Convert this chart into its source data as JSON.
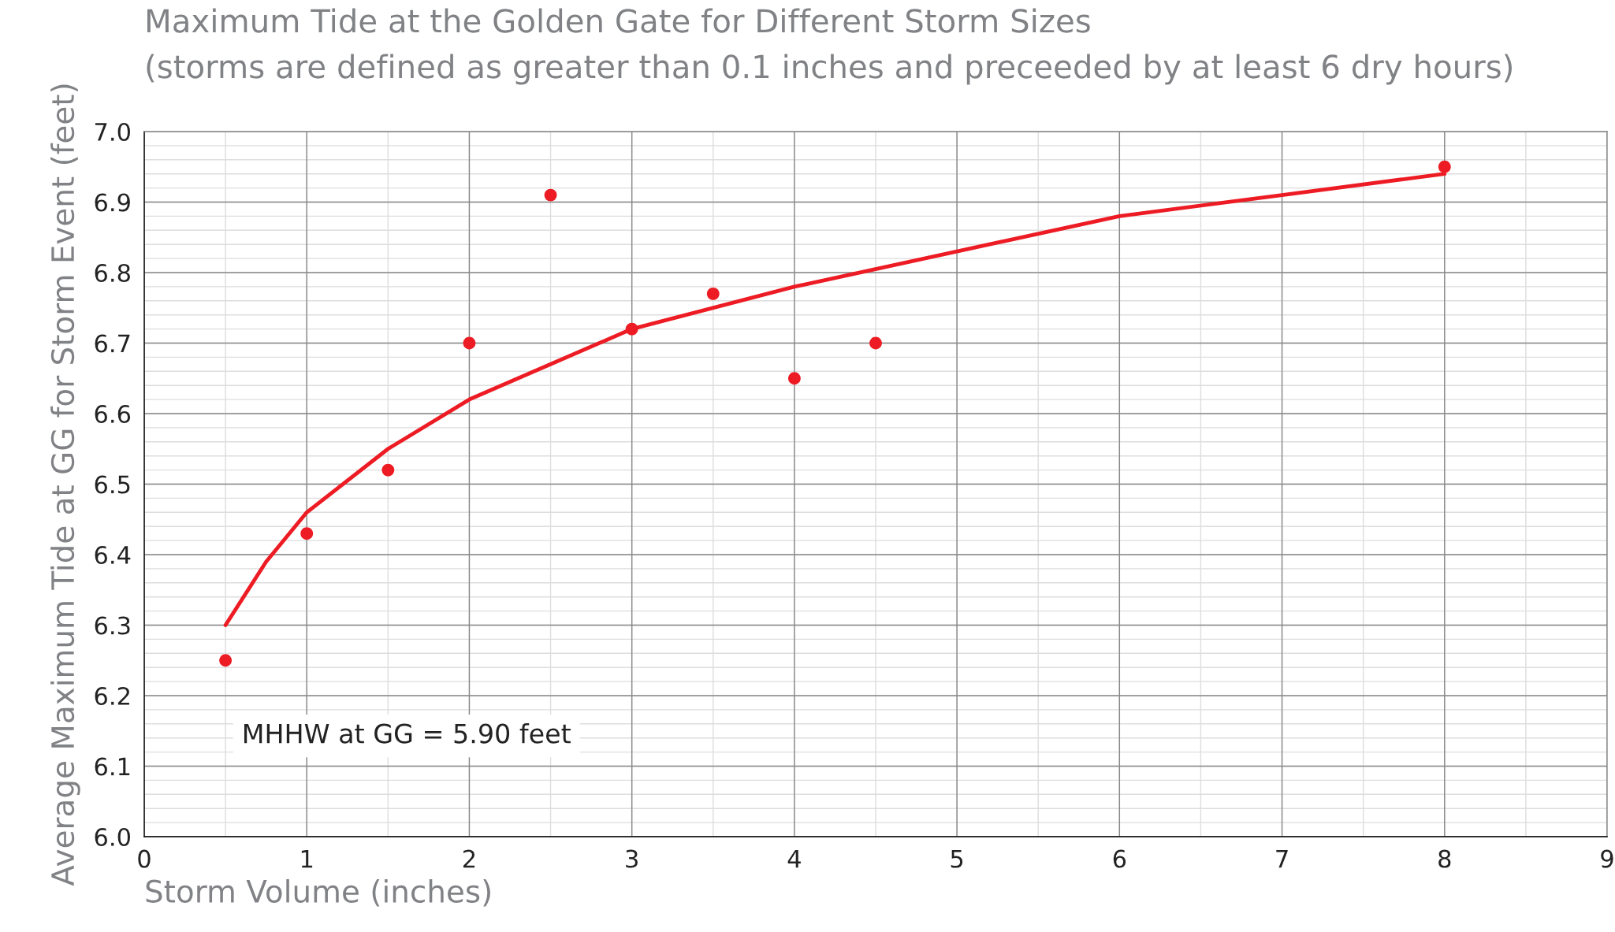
{
  "chart_data": {
    "type": "scatter",
    "title": "Maximum Tide at the Golden Gate for Different Storm Sizes",
    "subtitle": "(storms are defined as greater than 0.1 inches and preceeded by at least 6 dry hours)",
    "xlabel": "Storm Volume (inches)",
    "ylabel": "Average Maximum Tide at GG for Storm Event (feet)",
    "annotations": [
      "MHHW at GG = 5.90 feet"
    ],
    "series": [
      {
        "color": "#ed1c24",
        "marker": "circle",
        "x": [
          0.5,
          1,
          1.5,
          2,
          2.5,
          3,
          3.5,
          4,
          4.5,
          8
        ],
        "values": [
          6.25,
          6.43,
          6.52,
          6.7,
          6.91,
          6.72,
          6.77,
          6.65,
          6.7,
          6.95
        ]
      },
      {
        "type": "line",
        "color": "#ed1c24",
        "line_style": "solid",
        "x": [
          0.5,
          0.75,
          1,
          1.5,
          2,
          2.5,
          3,
          4,
          5,
          6,
          7,
          8
        ],
        "values": [
          6.3,
          6.39,
          6.46,
          6.55,
          6.62,
          6.67,
          6.72,
          6.78,
          6.83,
          6.88,
          6.91,
          6.94
        ]
      }
    ],
    "xlim": [
      0,
      9
    ],
    "xticks": [
      0,
      1,
      2,
      3,
      4,
      5,
      6,
      7,
      8,
      9
    ],
    "ylim": [
      6.0,
      7.0
    ],
    "yticks": [
      "6.0",
      6.1,
      6.2,
      6.3,
      6.4,
      6.5,
      6.6,
      6.7,
      6.8,
      6.9,
      "7.0"
    ],
    "grid": true
  }
}
